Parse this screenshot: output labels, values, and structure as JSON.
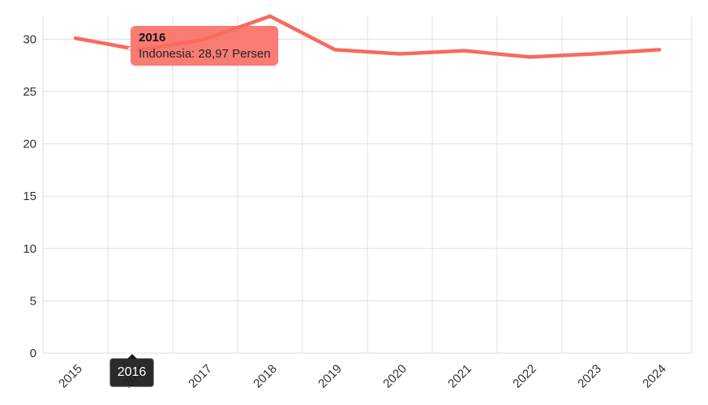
{
  "chart_data": {
    "type": "line",
    "title": "",
    "xlabel": "",
    "ylabel": "",
    "categories": [
      "2015",
      "2016",
      "2017",
      "2018",
      "2019",
      "2020",
      "2021",
      "2022",
      "2023",
      "2024"
    ],
    "series": [
      {
        "name": "Indonesia",
        "unit": "Persen",
        "color": "#f8695e",
        "values": [
          30.1,
          28.97,
          30.0,
          32.2,
          29.0,
          28.6,
          28.9,
          28.3,
          28.6,
          29.0
        ]
      }
    ],
    "yticks": [
      0,
      5,
      10,
      15,
      20,
      25,
      30
    ],
    "ylim": [
      0,
      32.2
    ],
    "grid": true,
    "legend_position": "none",
    "highlighted_category": "2016",
    "highlighted_value": "28,97"
  },
  "tooltip": {
    "title": "2016",
    "body": "Indonesia: 28,97 Persen",
    "bg_color": "rgba(248,106,96,0.88)",
    "title_color": "#141414",
    "body_color": "#232323"
  },
  "axis_badge": {
    "label": "2016",
    "bg_color": "rgba(27,27,27,0.93)",
    "text_color": "#ffffff",
    "border_color": "#8f8f8f"
  },
  "colors": {
    "line": "#f8695e",
    "grid": "#e0e0e0",
    "axis_line": "#dcdcdc",
    "axis_text": "#303030",
    "hover_marker": "#ffffff",
    "background": "#ffffff"
  }
}
